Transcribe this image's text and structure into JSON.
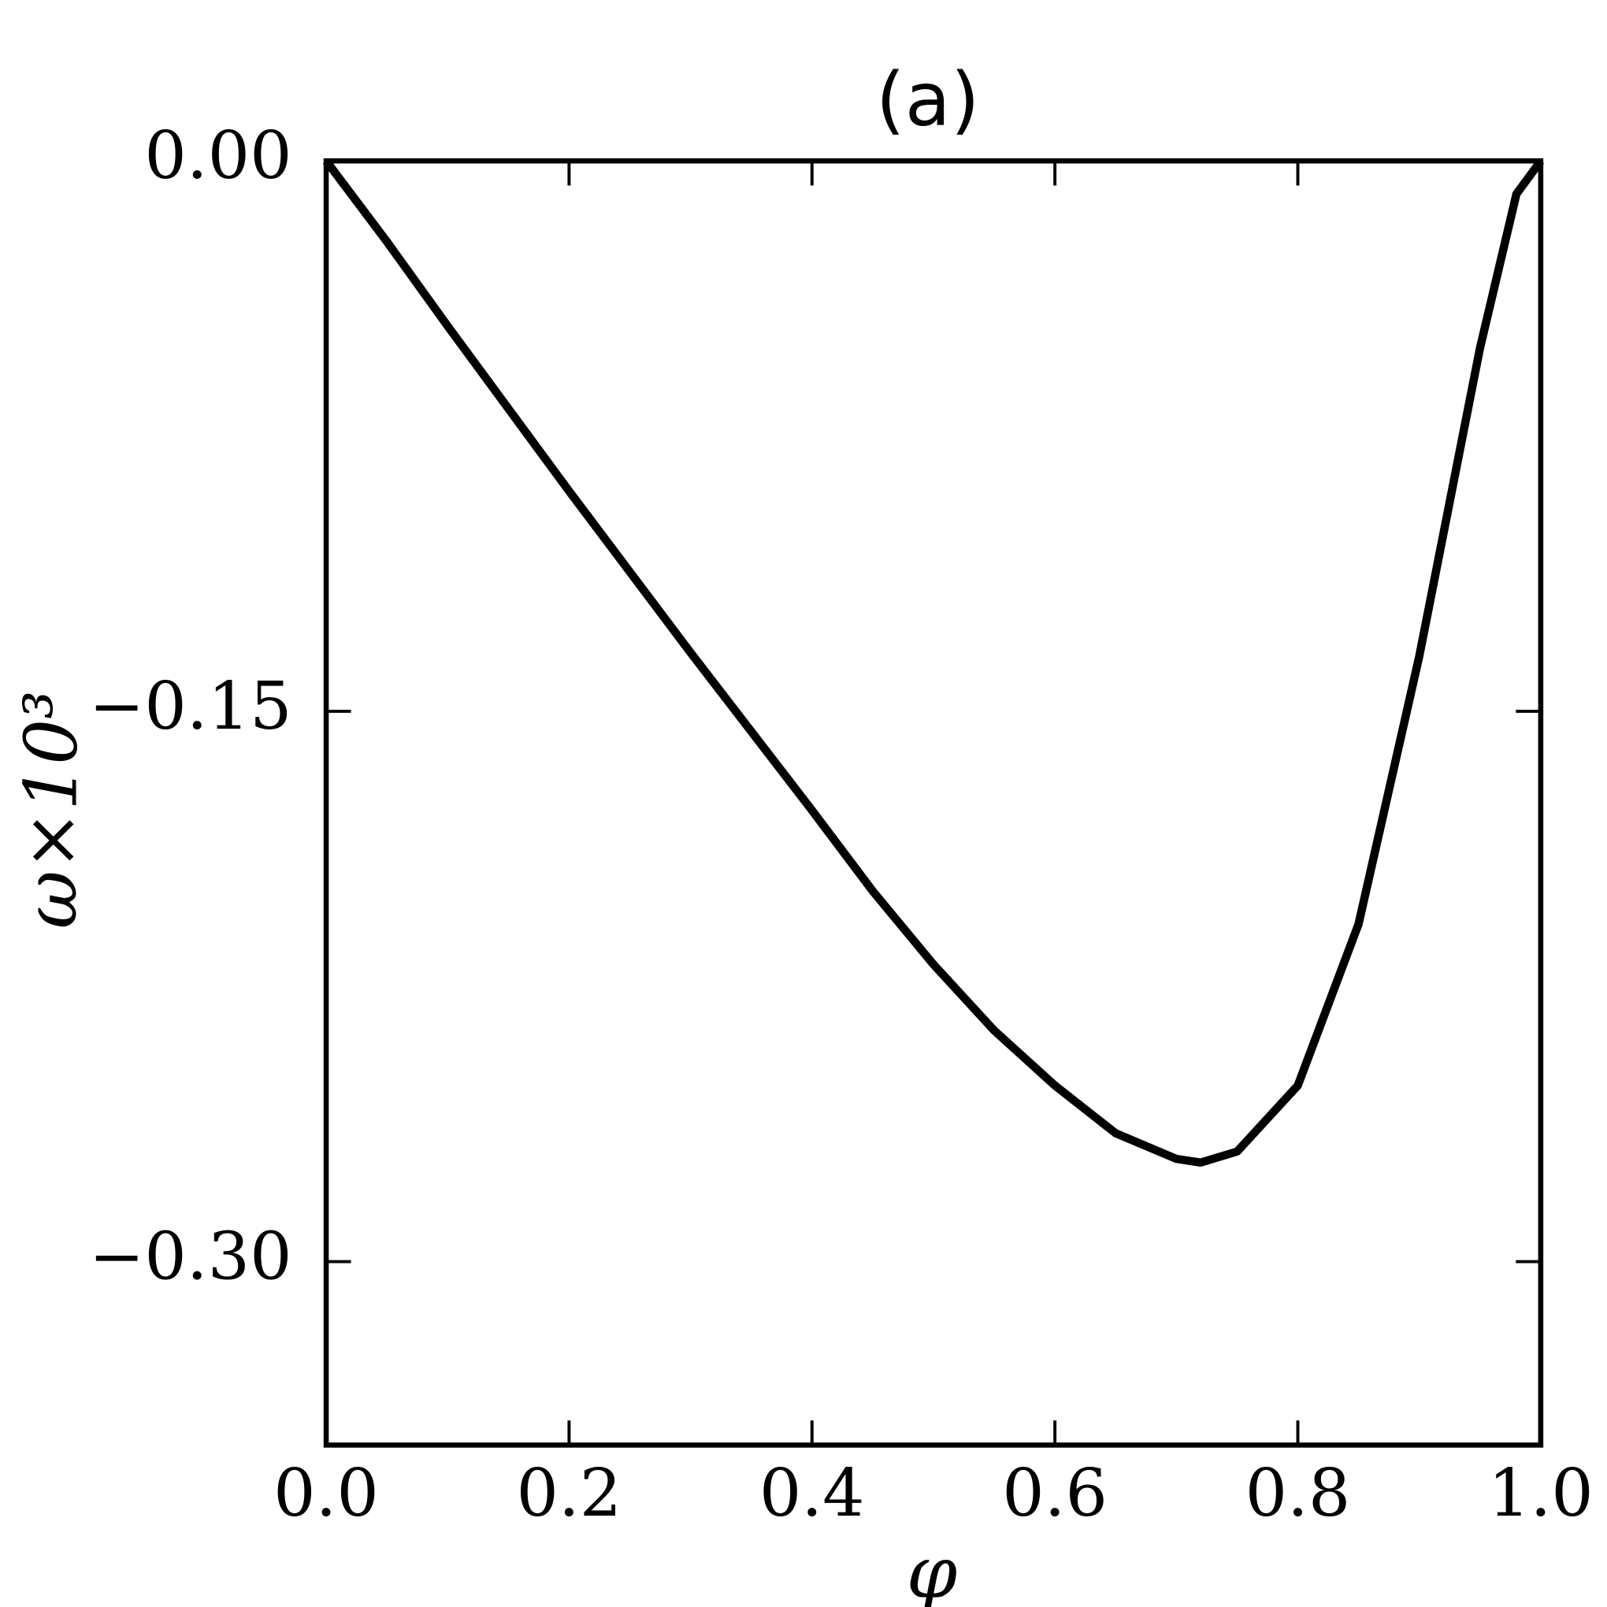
{
  "chart_data": {
    "type": "line",
    "title": "(a)",
    "x_label": "φ",
    "y_label": "ω×10³",
    "x": [
      0,
      0.05,
      0.1,
      0.2,
      0.3,
      0.4,
      0.45,
      0.5,
      0.55,
      0.6,
      0.65,
      0.7,
      0.72,
      0.75,
      0.8,
      0.85,
      0.9,
      0.95,
      0.98,
      1.0
    ],
    "values": [
      0,
      -0.022,
      -0.045,
      -0.09,
      -0.134,
      -0.177,
      -0.199,
      -0.219,
      -0.237,
      -0.252,
      -0.265,
      -0.272,
      -0.273,
      -0.27,
      -0.252,
      -0.208,
      -0.135,
      -0.051,
      -0.009,
      0
    ],
    "color": "#000000",
    "xlim": [
      0,
      1
    ],
    "ylim": [
      -0.35,
      0
    ],
    "xticks": [
      {
        "value": 0,
        "label": "0.0"
      },
      0.2,
      0.4,
      0.6,
      0.8,
      {
        "value": 1,
        "label": "1.0"
      }
    ],
    "yticks": [
      {
        "value": 0,
        "label": "0.00"
      },
      {
        "value": -0.15,
        "label": "−0.15"
      },
      {
        "value": -0.3,
        "label": "−0.30"
      }
    ],
    "grid": false
  }
}
